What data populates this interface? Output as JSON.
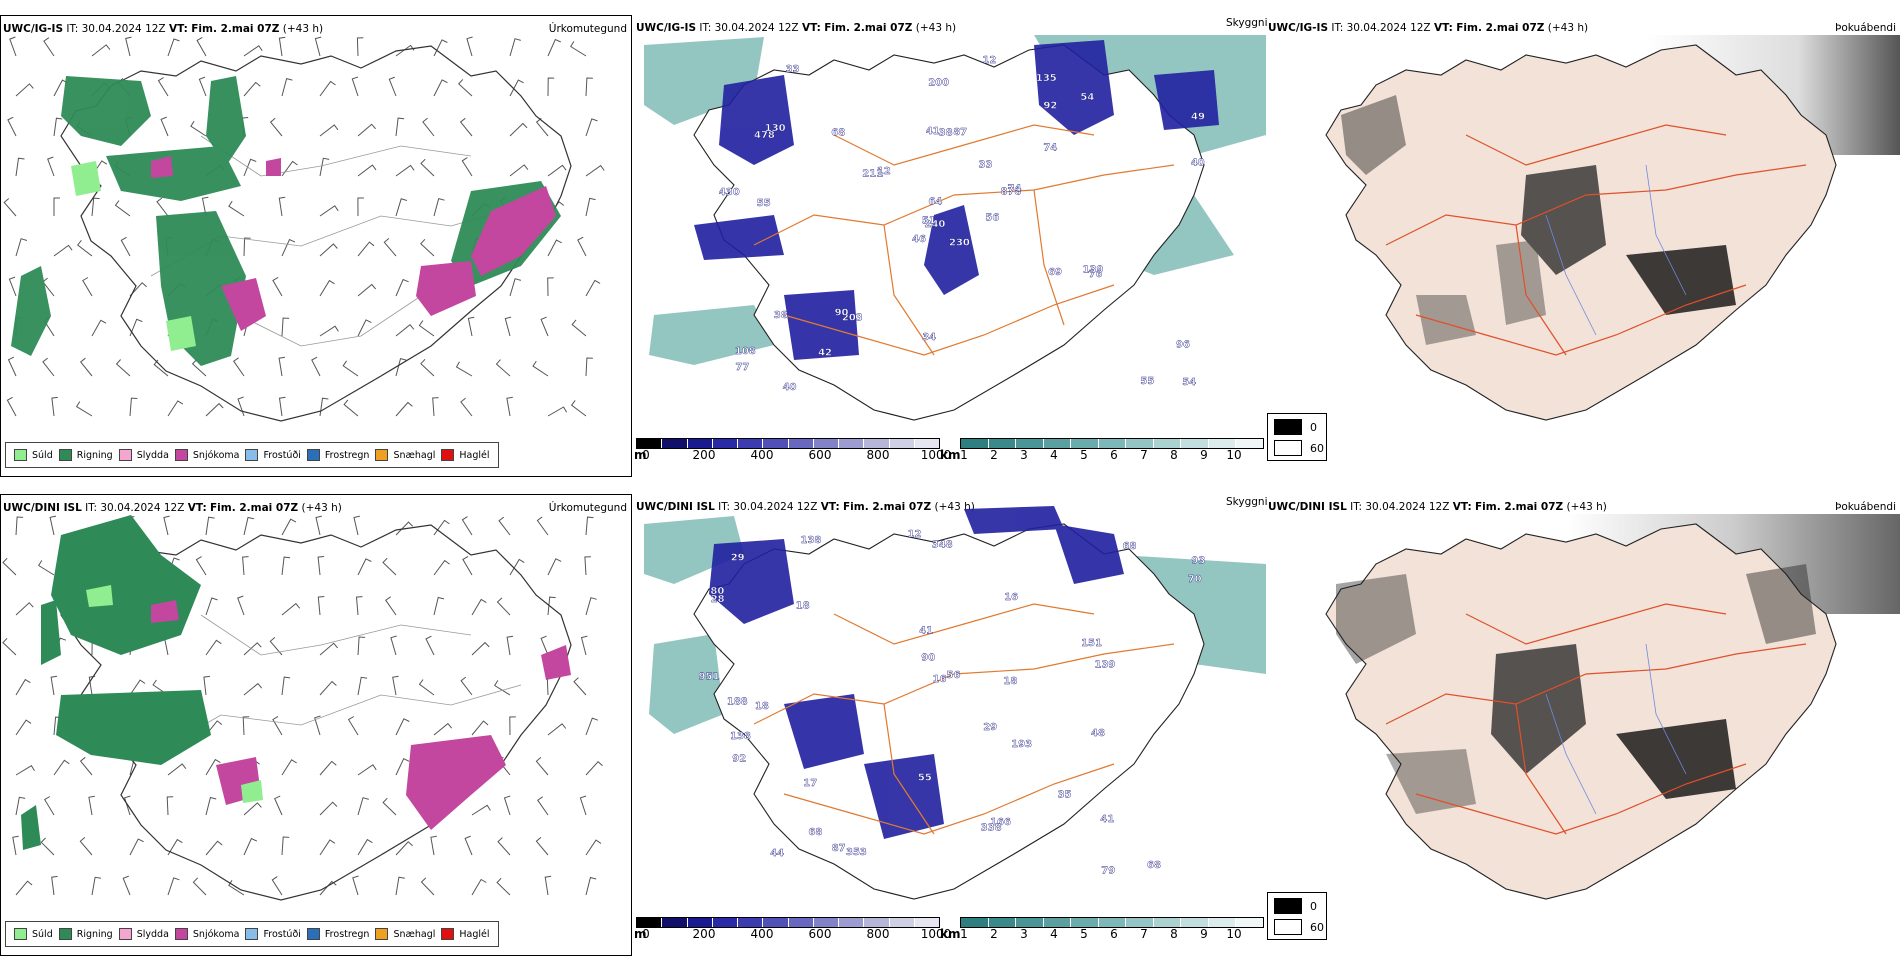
{
  "rows": [
    {
      "precip": {
        "model": "UWC/IG-IS",
        "it_label": "IT:",
        "it_value": "30.04.2024 12Z",
        "vt_label": "VT:",
        "vt_value": "Fim. 2.mai 07Z",
        "lead": "(+43 h)",
        "title": "Úrkomutegund"
      },
      "vis": {
        "model": "UWC/IG-IS",
        "it_label": "IT:",
        "it_value": "30.04.2024 12Z",
        "vt_label": "VT:",
        "vt_value": "Fim. 2.mai 07Z",
        "lead": "(+43 h)",
        "title": "Skyggni",
        "labels": [
          "230",
          "478",
          "240",
          "108",
          "878",
          "203",
          "135",
          "87",
          "92",
          "56",
          "33",
          "54",
          "55",
          "49",
          "46",
          "74",
          "40",
          "41",
          "33",
          "38",
          "12",
          "77",
          "42",
          "38",
          "74",
          "76",
          "130",
          "200",
          "430",
          "69",
          "40",
          "51",
          "34",
          "64",
          "68",
          "54",
          "90",
          "55",
          "96",
          "139",
          "12",
          "211"
        ]
      },
      "fog": {
        "model": "UWC/IG-IS",
        "it_label": "IT:",
        "it_value": "30.04.2024 12Z",
        "vt_label": "VT:",
        "vt_value": "Fim. 2.mai 07Z",
        "lead": "(+43 h)",
        "title": "Þokuábendi"
      }
    },
    {
      "precip": {
        "model": "UWC/DINI ISL",
        "it_label": "IT:",
        "it_value": "30.04.2024 12Z",
        "vt_label": "VT:",
        "vt_value": "Fim. 2.mai 07Z",
        "lead": "(+43 h)",
        "title": "Úrkomutegund"
      },
      "vis": {
        "model": "UWC/DINI ISL",
        "it_label": "IT:",
        "it_value": "30.04.2024 12Z",
        "vt_label": "VT:",
        "vt_value": "Fim. 2.mai 07Z",
        "lead": "(+43 h)",
        "title": "Skyggni",
        "labels": [
          "951",
          "348",
          "151",
          "93",
          "80",
          "68",
          "18",
          "16",
          "41",
          "68",
          "56",
          "48",
          "12",
          "28",
          "18",
          "17",
          "166",
          "188",
          "29",
          "55",
          "35",
          "41",
          "70",
          "90",
          "68",
          "16",
          "193",
          "138",
          "353",
          "338",
          "138",
          "79",
          "18",
          "44",
          "87",
          "92",
          "139",
          "29"
        ]
      },
      "fog": {
        "model": "UWC/DINI ISL",
        "it_label": "IT:",
        "it_value": "30.04.2024 12Z",
        "vt_label": "VT:",
        "vt_value": "Fim. 2.mai 07Z",
        "lead": "(+43 h)",
        "title": "Þokuábendi"
      }
    }
  ],
  "precip_legend": [
    {
      "label": "Súld",
      "color": "#90ee90"
    },
    {
      "label": "Rigning",
      "color": "#2e8b57"
    },
    {
      "label": "Slydda",
      "color": "#f4a6d0"
    },
    {
      "label": "Snjókoma",
      "color": "#c3479e"
    },
    {
      "label": "Frostúði",
      "color": "#87bde8"
    },
    {
      "label": "Frostregn",
      "color": "#2a6fb8"
    },
    {
      "label": "Snæhagl",
      "color": "#f0a020"
    },
    {
      "label": "Haglél",
      "color": "#e01010"
    }
  ],
  "height_scale": {
    "unit": "m",
    "ticks": [
      "0",
      "200",
      "400",
      "600",
      "800",
      "1000"
    ],
    "colors": [
      "#000000",
      "#10106a",
      "#1a1a90",
      "#2a2aa6",
      "#3c3cb0",
      "#5050b8",
      "#6868c0",
      "#8282c8",
      "#9c9cd0",
      "#b6b6d8",
      "#d0d0e4",
      "#e6e6f0"
    ]
  },
  "dist_scale": {
    "unit": "km",
    "ticks": [
      "1",
      "2",
      "3",
      "4",
      "5",
      "6",
      "7",
      "8",
      "9",
      "10"
    ],
    "colors": [
      "#2e8080",
      "#3a8a8a",
      "#4a9595",
      "#5aa0a0",
      "#6aabab",
      "#7eb7b7",
      "#94c4c4",
      "#abd1d1",
      "#c3dede",
      "#dcebeb",
      "#f1f7f7"
    ]
  },
  "fog_legend": {
    "items": [
      {
        "label": "0",
        "color": "#000000"
      },
      {
        "label": "60",
        "color": "#ffffff"
      }
    ]
  }
}
